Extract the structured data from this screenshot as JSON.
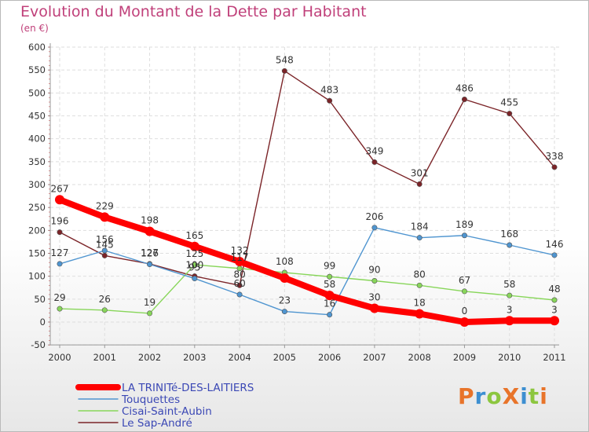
{
  "chart_data": {
    "type": "line",
    "title": "Evolution du Montant de la Dette par Habitant",
    "subtitle": "(en €)",
    "xlabel": "",
    "ylabel": "",
    "ylim": [
      -50,
      600
    ],
    "yticks": [
      -50,
      0,
      50,
      100,
      150,
      200,
      250,
      300,
      350,
      400,
      450,
      500,
      550,
      600
    ],
    "grid": true,
    "legend": "bottom-left",
    "x": [
      "2000",
      "2001",
      "2002",
      "2003",
      "2004",
      "2005",
      "2006",
      "2007",
      "2008",
      "2009",
      "2010",
      "2011"
    ],
    "series": [
      {
        "name": "LA TRINITé-DES-LAITIERS",
        "color": "#ff0000",
        "values": [
          267,
          229,
          198,
          165,
          132,
          96,
          58,
          30,
          18,
          0,
          3,
          3
        ],
        "labels": [
          "267",
          "229",
          "198",
          "165",
          "132",
          "",
          "58",
          "30",
          "18",
          "0",
          "3",
          "3"
        ]
      },
      {
        "name": "Touquettes",
        "color": "#4f95d0",
        "values": [
          127,
          156,
          126,
          95,
          60,
          23,
          16,
          206,
          184,
          189,
          168,
          146
        ],
        "labels": [
          "127",
          "156",
          "126",
          "95",
          "60",
          "23",
          "16",
          "206",
          "184",
          "189",
          "168",
          "146"
        ]
      },
      {
        "name": "Cisai-Saint-Aubin",
        "color": "#88d65a",
        "values": [
          29,
          26,
          19,
          125,
          117,
          108,
          99,
          90,
          80,
          67,
          58,
          48
        ],
        "labels": [
          "29",
          "26",
          "19",
          "125",
          "117",
          "108",
          "99",
          "90",
          "80",
          "67",
          "58",
          "48"
        ]
      },
      {
        "name": "Le Sap-André",
        "color": "#7b2428",
        "values": [
          196,
          145,
          127,
          100,
          80,
          548,
          483,
          349,
          301,
          486,
          455,
          338
        ],
        "labels": [
          "196",
          "145",
          "127",
          "100",
          "80",
          "548",
          "483",
          "349",
          "301",
          "486",
          "455",
          "338"
        ]
      }
    ]
  },
  "logo": {
    "text": "ProXiti",
    "colors": [
      "#e8742a",
      "#3d8fd1",
      "#8cc63f",
      "#e8742a",
      "#3d8fd1",
      "#8cc63f",
      "#e8742a"
    ]
  }
}
